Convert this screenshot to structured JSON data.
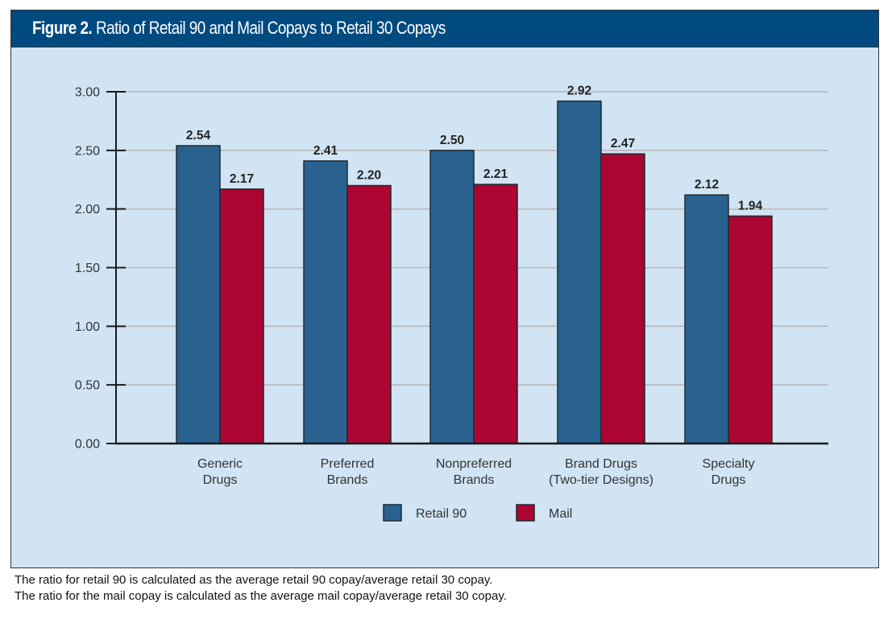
{
  "figure": {
    "label": "Figure 2.",
    "title": "Ratio of Retail 90 and Mail Copays to Retail 30 Copays"
  },
  "chart_data": {
    "type": "bar",
    "title": "Figure 2. Ratio of Retail 90 and Mail Copays to Retail 30 Copays",
    "xlabel": "",
    "ylabel": "",
    "ylim": [
      0,
      3
    ],
    "yticks": [
      0,
      0.5,
      1,
      1.5,
      2,
      2.5,
      3
    ],
    "ytick_labels": [
      "0.00",
      "0.50",
      "1.00",
      "1.50",
      "2.00",
      "2.50",
      "3.00"
    ],
    "grid": true,
    "legend_position": "bottom-center",
    "categories": [
      [
        "Generic",
        "Drugs"
      ],
      [
        "Preferred",
        "Brands"
      ],
      [
        "Nonpreferred",
        "Brands"
      ],
      [
        "Brand Drugs",
        "(Two-tier Designs)"
      ],
      [
        "Specialty",
        "Drugs"
      ]
    ],
    "series": [
      {
        "name": "Retail 90",
        "color": "#2a628f",
        "values": [
          2.54,
          2.41,
          2.5,
          2.92,
          2.12
        ],
        "labels": [
          "2.54",
          "2.41",
          "2.50",
          "2.92",
          "2.12"
        ]
      },
      {
        "name": "Mail",
        "color": "#ad0532",
        "values": [
          2.17,
          2.2,
          2.21,
          2.47,
          1.94
        ],
        "labels": [
          "2.17",
          "2.20",
          "2.21",
          "2.47",
          "1.94"
        ]
      }
    ]
  },
  "notes": [
    "The ratio for retail 90 is calculated as the average retail 90 copay/average retail 30 copay.",
    "The ratio for the mail copay is calculated as the average mail copay/average retail 30 copay."
  ]
}
